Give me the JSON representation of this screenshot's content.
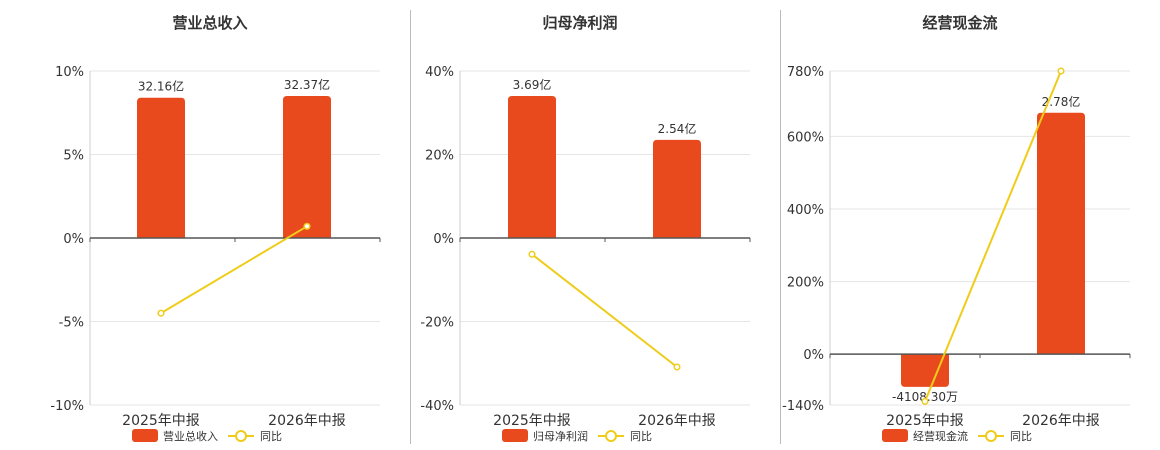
{
  "colors": {
    "bar": "#e8491d",
    "line": "#f0cc1a",
    "axis": "#555555",
    "grid": "#e6e6e6",
    "text": "#333333"
  },
  "chart_data": [
    {
      "type": "bar",
      "title": "营业总收入",
      "categories": [
        "2025年中报",
        "2026年中报"
      ],
      "bar_series": {
        "name": "营业总收入",
        "values": [
          32.16,
          32.37
        ],
        "labels": [
          "32.16亿",
          "32.37亿"
        ]
      },
      "line_series": {
        "name": "同比",
        "values": [
          -4.5,
          0.7
        ]
      },
      "y_ticks": [
        10,
        5,
        0,
        -5,
        -10
      ],
      "y_tick_labels": [
        "10%",
        "5%",
        "0%",
        "-5%",
        "-10%"
      ],
      "ylim": [
        -10,
        10
      ],
      "bar_height_pct": [
        8.4,
        8.5
      ]
    },
    {
      "type": "bar",
      "title": "归母净利润",
      "categories": [
        "2025年中报",
        "2026年中报"
      ],
      "bar_series": {
        "name": "归母净利润",
        "values": [
          3.69,
          2.54
        ],
        "labels": [
          "3.69亿",
          "2.54亿"
        ]
      },
      "line_series": {
        "name": "同比",
        "values": [
          -3.9,
          -30.9
        ]
      },
      "y_ticks": [
        40,
        20,
        0,
        -20,
        -40
      ],
      "y_tick_labels": [
        "40%",
        "20%",
        "0%",
        "-20%",
        "-40%"
      ],
      "ylim": [
        -40,
        40
      ],
      "bar_height_pct": [
        34,
        23.5
      ]
    },
    {
      "type": "bar",
      "title": "经营现金流",
      "categories": [
        "2025年中报",
        "2026年中报"
      ],
      "bar_series": {
        "name": "经营现金流",
        "values": [
          -0.41083,
          2.78
        ],
        "labels": [
          "-4108.30万",
          "2.78亿"
        ]
      },
      "line_series": {
        "name": "同比",
        "values": [
          -130,
          780
        ]
      },
      "y_ticks": [
        780,
        600,
        400,
        200,
        0,
        -140
      ],
      "y_tick_labels": [
        "780%",
        "600%",
        "400%",
        "200%",
        "0%",
        "-140%"
      ],
      "ylim": [
        -140,
        780
      ],
      "bar_height_pct": [
        -90,
        665
      ]
    }
  ]
}
